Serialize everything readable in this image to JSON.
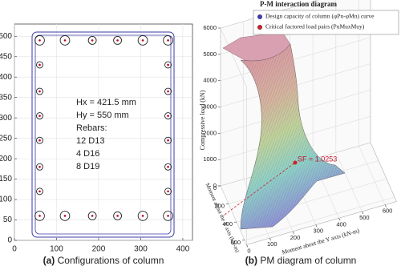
{
  "chart_data": [
    {
      "type": "scatter",
      "caption_label": "(a)",
      "caption": "Configurations of column",
      "x": [
        60,
        120,
        185,
        245,
        305,
        365,
        60,
        120,
        185,
        245,
        305,
        365,
        60,
        60,
        60,
        60,
        60,
        60,
        365,
        365,
        365,
        365,
        365,
        365
      ],
      "values": [
        490,
        490,
        490,
        490,
        490,
        490,
        60,
        60,
        60,
        60,
        60,
        60,
        430,
        365,
        305,
        245,
        180,
        120,
        430,
        365,
        305,
        245,
        180,
        120
      ],
      "sizes": [
        19,
        19,
        16,
        16,
        19,
        19,
        19,
        19,
        16,
        16,
        19,
        19,
        13,
        13,
        13,
        13,
        13,
        13,
        13,
        13,
        13,
        13,
        13,
        13
      ],
      "color": "#c0001a",
      "annotations": [
        "Hx = 421.5 mm",
        "Hy = 550 mm",
        "Rebars:",
        "12 D13",
        "4 D16",
        "8 D19"
      ],
      "xlim": [
        0,
        423
      ],
      "ylim": [
        0,
        530
      ],
      "xticks": [
        0,
        100,
        200,
        300,
        400
      ],
      "yticks": [
        0,
        50,
        100,
        150,
        200,
        250,
        300,
        350,
        400,
        450,
        500
      ],
      "grid": true
    },
    {
      "type": "surface3d",
      "title": "P-M interaction diagram",
      "caption_label": "(b)",
      "caption": "PM diagram of column",
      "zlabel": "Compressive load (kN)",
      "xlabel": "Moment about the X axis (kN-m)",
      "ylabel": "Moment about the Y axis (kN-m)",
      "legend": [
        {
          "name": "Design capacity of column (φPn-φMn) curve",
          "color": "#3b3fb8"
        },
        {
          "name": "Critical factored load pairs (PuMuxMuy)",
          "color": "#d0202a"
        }
      ],
      "annotation": "SF = 1.0253",
      "xlim": [
        0,
        650
      ],
      "ylim": [
        0,
        650
      ],
      "zlim": [
        0,
        6000
      ],
      "xticks": [
        0,
        200,
        400,
        600
      ],
      "yticks": [
        0,
        100,
        200,
        300,
        400,
        500,
        600
      ],
      "zticks": [
        0,
        1000,
        2000,
        3000,
        4000,
        5000,
        6000
      ],
      "grid": true
    }
  ]
}
